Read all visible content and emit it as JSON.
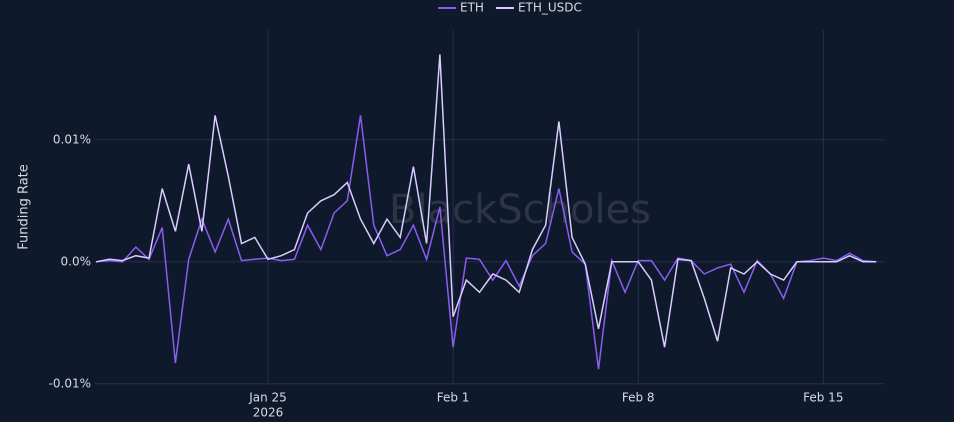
{
  "chart_data": {
    "type": "line",
    "ylabel": "Funding Rate",
    "watermark": "BlackScholes",
    "x": [
      "2026-01-18T12:00",
      "2026-01-19T00:00",
      "2026-01-19T12:00",
      "2026-01-20T00:00",
      "2026-01-20T12:00",
      "2026-01-21T00:00",
      "2026-01-21T12:00",
      "2026-01-22T00:00",
      "2026-01-22T12:00",
      "2026-01-23T00:00",
      "2026-01-23T12:00",
      "2026-01-24T00:00",
      "2026-01-24T12:00",
      "2026-01-25T00:00",
      "2026-01-25T12:00",
      "2026-01-26T00:00",
      "2026-01-26T12:00",
      "2026-01-27T00:00",
      "2026-01-27T12:00",
      "2026-01-28T00:00",
      "2026-01-28T12:00",
      "2026-01-29T00:00",
      "2026-01-29T12:00",
      "2026-01-30T00:00",
      "2026-01-30T12:00",
      "2026-01-31T00:00",
      "2026-01-31T12:00",
      "2026-02-01T00:00",
      "2026-02-01T12:00",
      "2026-02-02T00:00",
      "2026-02-02T12:00",
      "2026-02-03T00:00",
      "2026-02-03T12:00",
      "2026-02-04T00:00",
      "2026-02-04T12:00",
      "2026-02-05T00:00",
      "2026-02-05T12:00",
      "2026-02-06T00:00",
      "2026-02-06T12:00",
      "2026-02-07T00:00",
      "2026-02-07T12:00",
      "2026-02-08T00:00",
      "2026-02-08T12:00",
      "2026-02-09T00:00",
      "2026-02-09T12:00",
      "2026-02-10T00:00",
      "2026-02-10T12:00",
      "2026-02-11T00:00",
      "2026-02-11T12:00",
      "2026-02-12T00:00",
      "2026-02-12T12:00",
      "2026-02-13T00:00",
      "2026-02-13T12:00",
      "2026-02-14T00:00",
      "2026-02-14T12:00",
      "2026-02-15T00:00",
      "2026-02-15T12:00",
      "2026-02-16T00:00",
      "2026-02-16T12:00",
      "2026-02-17T00:00"
    ],
    "series": [
      {
        "name": "ETH",
        "color": "#8a5cf0",
        "values": [
          0,
          0.0001,
          0,
          0.0012,
          0.0002,
          0.0028,
          -0.0083,
          0.0002,
          0.0035,
          0.0008,
          0.0035,
          0.0001,
          0.0002,
          0.0003,
          0.0001,
          0.0002,
          0.003,
          0.001,
          0.004,
          0.005,
          0.012,
          0.003,
          0.0005,
          0.001,
          0.003,
          0.0002,
          0.0045,
          -0.007,
          0.0003,
          0.0002,
          -0.0015,
          0.0001,
          -0.002,
          0.0005,
          0.0015,
          0.006,
          0.0008,
          -0.0002,
          -0.0088,
          0.0001,
          -0.0025,
          0.0001,
          0.0001,
          -0.0015,
          0.0003,
          0.0001,
          -0.001,
          -0.0005,
          -0.0002,
          -0.0025,
          0.0001,
          -0.001,
          -0.003,
          0,
          0.0001,
          0.0003,
          0.0001,
          0.0007,
          0.0001,
          0
        ]
      },
      {
        "name": "ETH_USDC",
        "color": "#d9ccff",
        "values": [
          0,
          0.0002,
          0.0001,
          0.0005,
          0.0003,
          0.006,
          0.0025,
          0.008,
          0.0025,
          0.012,
          0.007,
          0.0015,
          0.002,
          0.0002,
          0.0005,
          0.001,
          0.004,
          0.005,
          0.0055,
          0.0065,
          0.0035,
          0.0015,
          0.0035,
          0.002,
          0.0078,
          0.0015,
          0.017,
          -0.0045,
          -0.0015,
          -0.0025,
          -0.001,
          -0.0015,
          -0.0025,
          0.001,
          0.003,
          0.0115,
          0.002,
          -0.0002,
          -0.0055,
          0,
          0,
          0,
          -0.0015,
          -0.007,
          0.0002,
          0.0001,
          -0.003,
          -0.0065,
          -0.0005,
          -0.001,
          0,
          -0.001,
          -0.0015,
          0,
          0,
          0,
          0,
          0.0005,
          0,
          0
        ]
      }
    ],
    "xlim": [
      "2026-01-18T11:00",
      "2026-02-17T08:00"
    ],
    "xticks": [
      {
        "value": "2026-01-25T00:00",
        "label": [
          "Jan 25",
          "2026"
        ]
      },
      {
        "value": "2026-02-01T00:00",
        "label": "Feb 1"
      },
      {
        "value": "2026-02-08T00:00",
        "label": "Feb 8"
      },
      {
        "value": "2026-02-15T00:00",
        "label": "Feb 15"
      }
    ],
    "ylim": [
      -0.0101,
      0.019
    ],
    "yticks": [
      {
        "value": -0.01,
        "label": "-0.01%"
      },
      {
        "value": 0,
        "label": "0.0%"
      },
      {
        "value": 0.01,
        "label": "0.01%"
      }
    ],
    "grid": true
  }
}
